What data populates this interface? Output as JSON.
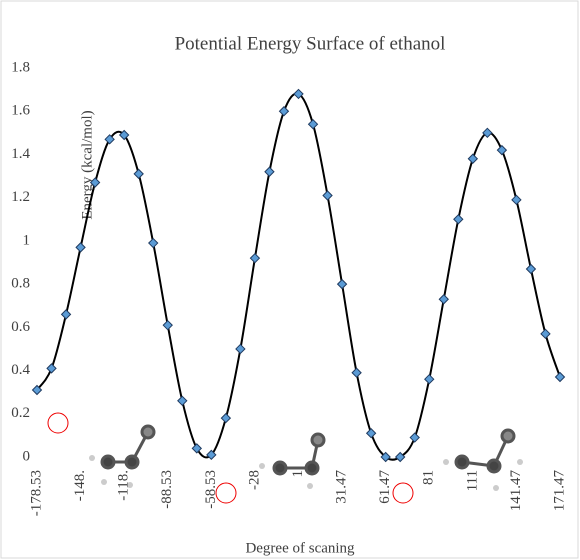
{
  "chart_data": {
    "type": "line",
    "title": "Potential Energy Surface of ethanol",
    "x_label": "Degree of scaning",
    "y_label": "Energy (kcal/mol)",
    "categories": [
      "-178.53",
      null,
      null,
      "-148.",
      null,
      null,
      "-118.",
      null,
      null,
      "-88.53",
      null,
      null,
      "-58.53",
      null,
      null,
      "-28",
      null,
      null,
      "1",
      null,
      null,
      "31.47",
      null,
      null,
      "61.47",
      null,
      null,
      "81",
      null,
      null,
      "111",
      null,
      null,
      "141.47",
      null,
      null,
      "171.47"
    ],
    "values": [
      0.31,
      0.41,
      0.66,
      0.97,
      1.27,
      1.47,
      1.49,
      1.31,
      0.99,
      0.61,
      0.26,
      0.04,
      0.01,
      0.18,
      0.5,
      0.92,
      1.32,
      1.6,
      1.68,
      1.54,
      1.21,
      0.8,
      0.39,
      0.11,
      0.0,
      0.0,
      0.09,
      0.36,
      0.73,
      1.1,
      1.38,
      1.5,
      1.42,
      1.19,
      0.87,
      0.57,
      0.37
    ],
    "color": "#000000",
    "marker_color": "#5b9bd5",
    "ylim": [
      0,
      1.8
    ],
    "yticks": [
      0,
      0.2,
      0.4,
      0.6,
      0.8,
      1,
      1.2,
      1.4,
      1.6,
      1.8
    ]
  }
}
